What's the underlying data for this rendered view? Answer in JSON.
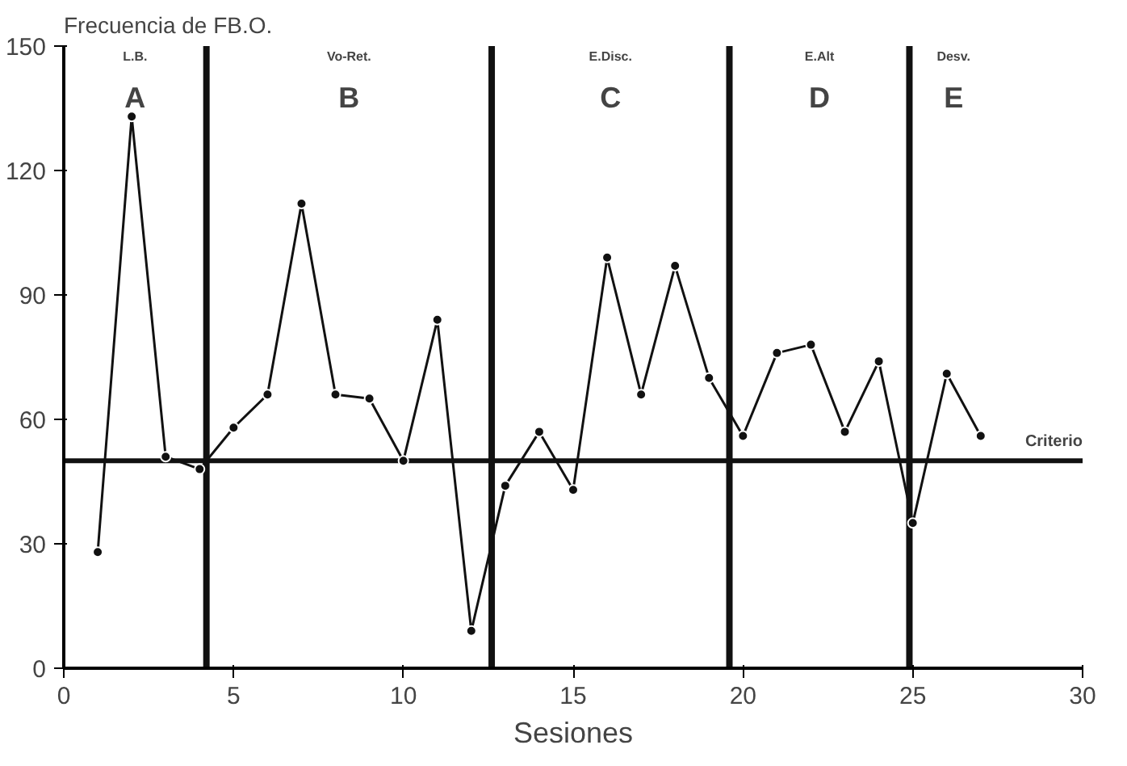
{
  "chart_data": {
    "type": "line",
    "ylabel": "Frecuencia de FB.O.",
    "xlabel": "Sesiones",
    "x": [
      1,
      2,
      3,
      4,
      5,
      6,
      7,
      8,
      9,
      10,
      11,
      12,
      13,
      14,
      15,
      16,
      17,
      18,
      19,
      20,
      21,
      22,
      23,
      24,
      25,
      26,
      27
    ],
    "series": [
      {
        "color": "#111111",
        "values": [
          28,
          133,
          51,
          48,
          58,
          66,
          112,
          66,
          65,
          50,
          84,
          9,
          44,
          57,
          43,
          99,
          66,
          97,
          70,
          56,
          76,
          78,
          57,
          74,
          35,
          71,
          56
        ]
      }
    ],
    "xlim": [
      0,
      30
    ],
    "ylim": [
      0,
      150
    ],
    "xticks": [
      0,
      5,
      10,
      15,
      20,
      25,
      30
    ],
    "yticks": [
      0,
      30,
      60,
      90,
      120,
      150
    ],
    "grid": false,
    "marker": "circle",
    "line_style": "solid",
    "ref_lines": [
      {
        "axis": "y",
        "value": 50,
        "label": "Criterio"
      },
      {
        "axis": "x",
        "value": 4.2
      },
      {
        "axis": "x",
        "value": 12.6
      },
      {
        "axis": "x",
        "value": 19.6
      },
      {
        "axis": "x",
        "value": 24.9
      }
    ],
    "annotations": [
      "A",
      "L.B.",
      "B",
      "Vo-Ret.",
      "C",
      "E.Disc.",
      "D",
      "E.Alt",
      "E",
      "Desv."
    ]
  }
}
